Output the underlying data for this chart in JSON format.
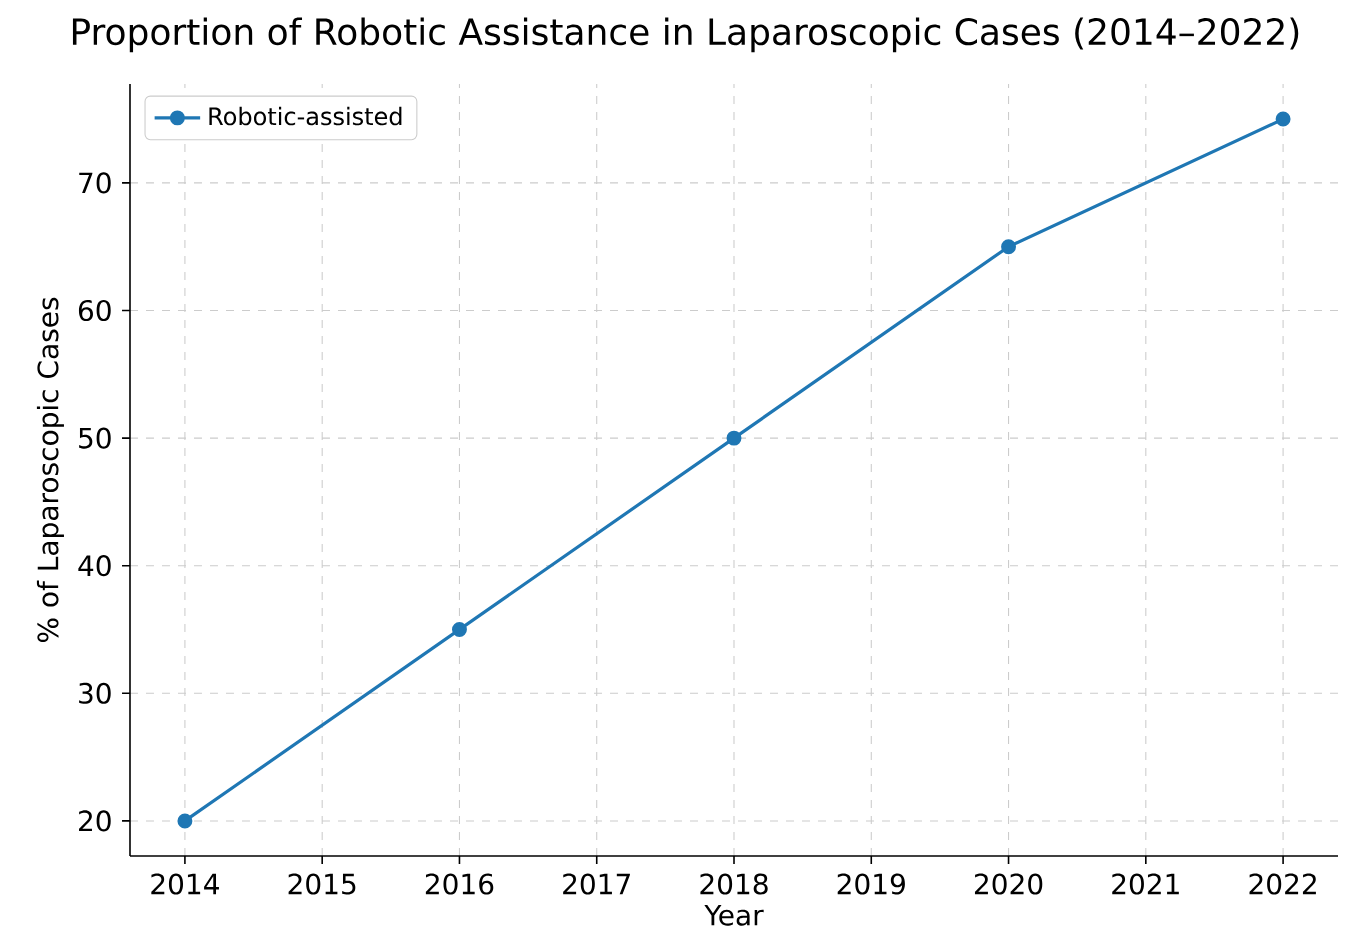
{
  "chart_data": {
    "type": "line",
    "title": "Proportion of Robotic Assistance in Laparoscopic Cases (2014–2022)",
    "xlabel": "Year",
    "ylabel": "% of Laparoscopic Cases",
    "x": [
      2014,
      2016,
      2018,
      2020,
      2022
    ],
    "series": [
      {
        "name": "Robotic-assisted",
        "color": "#1f77b4",
        "values": [
          20,
          35,
          50,
          65,
          75
        ]
      }
    ],
    "xlim": [
      2013.6,
      2022.4
    ],
    "ylim": [
      17.25,
      77.75
    ],
    "xticks": [
      2014,
      2015,
      2016,
      2017,
      2018,
      2019,
      2020,
      2021,
      2022
    ],
    "yticks": [
      20,
      30,
      40,
      50,
      60,
      70
    ],
    "grid": true,
    "legend": "top left",
    "marker": "circle",
    "line_style": "solid"
  }
}
